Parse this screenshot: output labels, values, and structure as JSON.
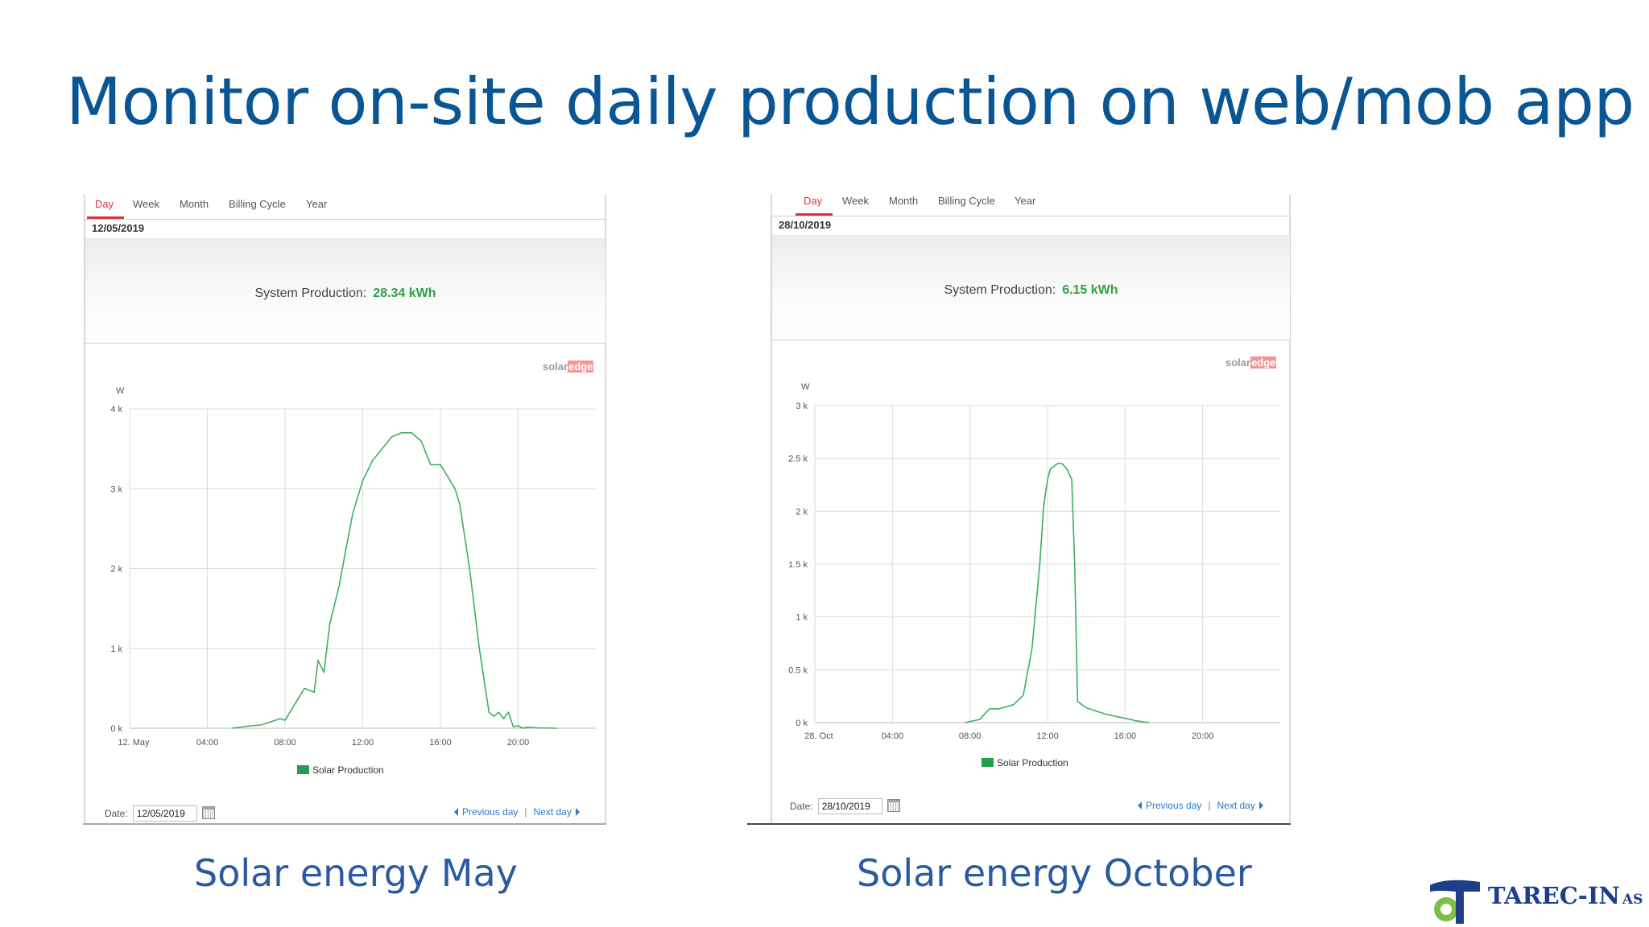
{
  "slide": {
    "title": "Monitor on-site daily production on web/mob app",
    "captions": [
      "Solar energy May",
      "Solar energy October"
    ],
    "company": {
      "name": "TAREC-IN",
      "suffix": "AS",
      "colors": {
        "blue": "#1e3e8c",
        "green": "#7bc043"
      }
    }
  },
  "panels": [
    {
      "tabs": [
        "Day",
        "Week",
        "Month",
        "Billing Cycle",
        "Year"
      ],
      "active_tab": "Day",
      "date": "12/05/2019",
      "production_label": "System Production:",
      "production_value": "28.34 kWh",
      "logo": {
        "solar": "solar",
        "edge": "edge"
      },
      "legend": "Solar Production",
      "footer": {
        "date_label": "Date:",
        "date_value": "12/05/2019",
        "previous": "Previous day",
        "separator": "|",
        "next": "Next day"
      }
    },
    {
      "tabs": [
        "Day",
        "Week",
        "Month",
        "Billing Cycle",
        "Year"
      ],
      "active_tab": "Day",
      "date": "28/10/2019",
      "production_label": "System Production:",
      "production_value": "6.15 kWh",
      "logo": {
        "solar": "solar",
        "edge": "edge"
      },
      "legend": "Solar Production",
      "footer": {
        "date_label": "Date:",
        "date_value": "28/10/2019",
        "previous": "Previous day",
        "separator": "|",
        "next": "Next day"
      }
    }
  ],
  "chart_data": [
    {
      "type": "area",
      "ylabel": "W",
      "ylim": [
        0,
        4000
      ],
      "yticks": [
        0,
        1000,
        2000,
        3000,
        4000
      ],
      "ytick_labels": [
        "0 k",
        "1 k",
        "2 k",
        "3 k",
        "4 k"
      ],
      "xlim": [
        0,
        24
      ],
      "xticks": [
        0,
        4,
        8,
        12,
        16,
        20
      ],
      "xtick_labels": [
        "12. May",
        "04:00",
        "08:00",
        "12:00",
        "16:00",
        "20:00"
      ],
      "grid": true,
      "legend_placement": "bottom-center",
      "series": [
        {
          "name": "Solar Production",
          "color": "#3fae63",
          "x": [
            5.25,
            6.25,
            6.75,
            7.25,
            7.75,
            8.0,
            8.5,
            9.0,
            9.5,
            9.7,
            10.0,
            10.3,
            10.5,
            10.8,
            11.1,
            11.5,
            12.0,
            12.5,
            13.0,
            13.5,
            14.0,
            14.5,
            15.0,
            15.5,
            16.0,
            16.5,
            16.75,
            17.0,
            17.5,
            18.0,
            18.5,
            18.75,
            19.0,
            19.25,
            19.5,
            19.75,
            20.0,
            20.25,
            20.5,
            21.0,
            22.0
          ],
          "y": [
            0,
            30,
            40,
            80,
            120,
            100,
            300,
            500,
            450,
            850,
            700,
            1300,
            1500,
            1800,
            2200,
            2700,
            3100,
            3350,
            3500,
            3650,
            3700,
            3700,
            3600,
            3300,
            3300,
            3100,
            3000,
            2800,
            2000,
            1000,
            200,
            150,
            200,
            120,
            200,
            20,
            30,
            0,
            15,
            5,
            0
          ]
        }
      ]
    },
    {
      "type": "area",
      "ylabel": "W",
      "ylim": [
        0,
        3000
      ],
      "yticks": [
        0,
        500,
        1000,
        1500,
        2000,
        2500,
        3000
      ],
      "ytick_labels": [
        "0 k",
        "0.5 k",
        "1 k",
        "1.5 k",
        "2 k",
        "2.5 k",
        "3 k"
      ],
      "xlim": [
        0,
        24
      ],
      "xticks": [
        0,
        4,
        8,
        12,
        16,
        20
      ],
      "xtick_labels": [
        "28. Oct",
        "04:00",
        "08:00",
        "12:00",
        "16:00",
        "20:00"
      ],
      "grid": true,
      "legend_placement": "bottom-center",
      "series": [
        {
          "name": "Solar Production",
          "color": "#3fae63",
          "x": [
            7.75,
            8.5,
            9.0,
            9.5,
            10.25,
            10.75,
            11.2,
            11.6,
            11.8,
            12.0,
            12.15,
            12.3,
            12.5,
            12.75,
            13.0,
            13.25,
            13.4,
            13.55,
            14.0,
            14.5,
            15.0,
            15.5,
            16.0,
            16.5,
            17.0,
            17.25
          ],
          "y": [
            0,
            30,
            130,
            130,
            170,
            260,
            700,
            1500,
            2050,
            2300,
            2400,
            2420,
            2450,
            2450,
            2400,
            2300,
            1500,
            200,
            140,
            110,
            80,
            60,
            40,
            20,
            5,
            0
          ]
        }
      ]
    }
  ]
}
